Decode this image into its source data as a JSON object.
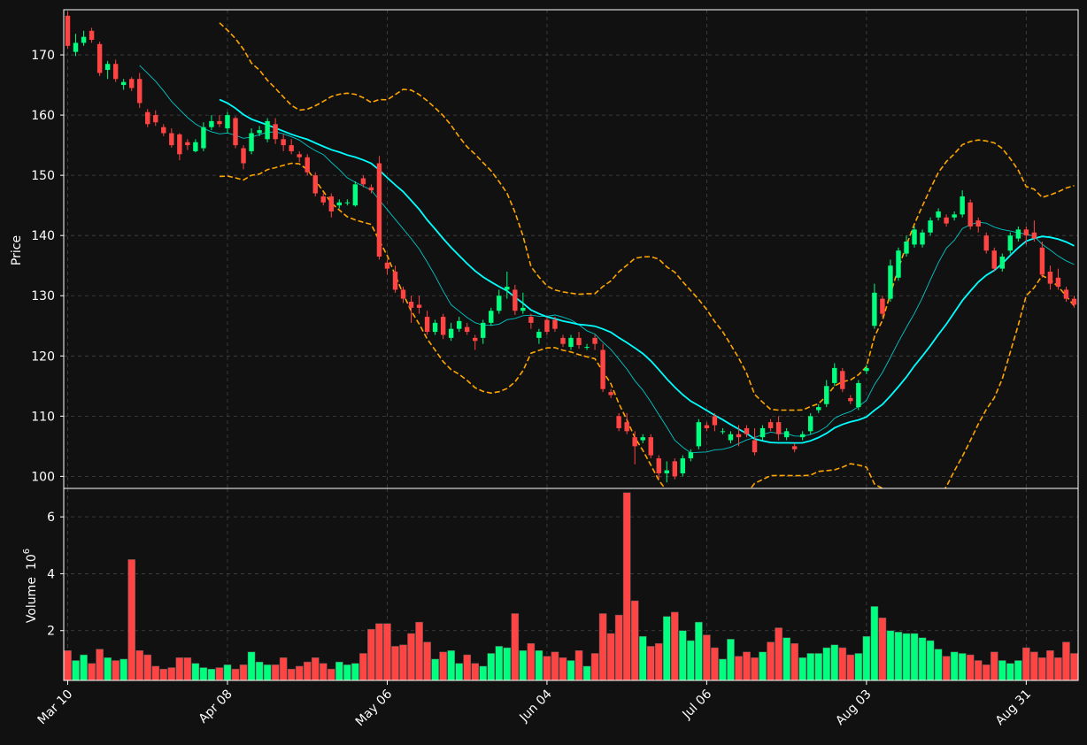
{
  "chart_data": {
    "type": "candlestick",
    "up_color": "#00ff7f",
    "down_color": "#ff4444",
    "ma_fast_color": "#00e5e5",
    "ma_slow_color": "#00ffff",
    "band_color": "#ffa500",
    "background": "#111111",
    "grid": true,
    "price_panel": {
      "ylabel": "Price",
      "yticks": [
        100,
        110,
        120,
        130,
        140,
        150,
        160,
        170
      ],
      "ylim": [
        98,
        177.5
      ]
    },
    "volume_panel": {
      "ylabel": "Volume",
      "scale_label": "10",
      "scale_exponent": "6",
      "yticks": [
        2,
        4,
        6
      ],
      "ylim": [
        0.25,
        7.0
      ]
    },
    "x_ticks": [
      {
        "label": "Mar 10",
        "index": 0
      },
      {
        "label": "Apr 08",
        "index": 20
      },
      {
        "label": "May 06",
        "index": 40
      },
      {
        "label": "Jun 04",
        "index": 60
      },
      {
        "label": "Jul 06",
        "index": 80
      },
      {
        "label": "Aug 03",
        "index": 100
      },
      {
        "label": "Aug 31",
        "index": 120
      }
    ],
    "candles": [
      [
        176.5,
        171.5,
        177.2,
        171.0
      ],
      [
        170.5,
        172.0,
        173.5,
        169.8
      ],
      [
        172.0,
        173.0,
        174.0,
        171.5
      ],
      [
        174.0,
        172.5,
        174.5,
        172.0
      ],
      [
        171.8,
        167.0,
        172.2,
        166.5
      ],
      [
        167.5,
        168.5,
        169.0,
        166.0
      ],
      [
        168.5,
        166.0,
        169.2,
        165.5
      ],
      [
        165.0,
        165.5,
        166.0,
        164.2
      ],
      [
        166.0,
        164.5,
        166.3,
        164.0
      ],
      [
        166.0,
        162.0,
        167.0,
        161.2
      ],
      [
        160.5,
        158.5,
        161.0,
        158.0
      ],
      [
        160.0,
        158.8,
        160.8,
        158.2
      ],
      [
        158.0,
        157.0,
        158.5,
        156.5
      ],
      [
        157.0,
        155.0,
        157.8,
        154.6
      ],
      [
        156.8,
        153.5,
        157.0,
        152.5
      ],
      [
        155.5,
        155.0,
        156.0,
        154.2
      ],
      [
        154.0,
        155.5,
        156.0,
        153.8
      ],
      [
        154.5,
        158.0,
        158.8,
        154.0
      ],
      [
        158.0,
        159.0,
        160.0,
        157.5
      ],
      [
        159.0,
        158.5,
        160.0,
        158.0
      ],
      [
        157.8,
        160.0,
        160.5,
        157.0
      ],
      [
        159.5,
        155.0,
        159.8,
        154.5
      ],
      [
        154.5,
        152.0,
        155.0,
        151.0
      ],
      [
        154.0,
        157.0,
        157.8,
        153.5
      ],
      [
        157.0,
        157.5,
        158.2,
        156.5
      ],
      [
        156.0,
        159.0,
        159.5,
        155.5
      ],
      [
        158.5,
        156.0,
        159.5,
        155.2
      ],
      [
        156.0,
        155.0,
        156.8,
        154.0
      ],
      [
        155.0,
        154.0,
        156.0,
        153.5
      ],
      [
        153.5,
        153.0,
        154.0,
        152.2
      ],
      [
        153.0,
        150.5,
        153.5,
        150.0
      ],
      [
        150.0,
        147.0,
        150.5,
        146.5
      ],
      [
        146.5,
        145.5,
        147.0,
        145.0
      ],
      [
        146.5,
        144.0,
        147.0,
        143.0
      ],
      [
        145.0,
        145.5,
        146.0,
        144.5
      ],
      [
        145.5,
        145.5,
        146.0,
        145.0
      ],
      [
        145.0,
        148.5,
        149.0,
        144.8
      ],
      [
        149.5,
        148.5,
        150.0,
        148.0
      ],
      [
        148.0,
        147.5,
        148.5,
        147.0
      ],
      [
        152.0,
        136.5,
        153.2,
        136.0
      ],
      [
        135.5,
        134.5,
        136.0,
        133.5
      ],
      [
        134.0,
        131.0,
        135.0,
        130.5
      ],
      [
        131.0,
        129.5,
        131.5,
        128.8
      ],
      [
        129.0,
        128.0,
        130.0,
        125.5
      ],
      [
        128.5,
        128.0,
        130.0,
        127.0
      ],
      [
        126.5,
        124.0,
        127.5,
        123.5
      ],
      [
        124.0,
        125.5,
        126.0,
        123.5
      ],
      [
        126.5,
        123.5,
        127.0,
        122.8
      ],
      [
        123.0,
        124.5,
        125.5,
        122.5
      ],
      [
        124.5,
        125.8,
        126.5,
        124.0
      ],
      [
        124.8,
        124.0,
        125.5,
        123.5
      ],
      [
        123.0,
        122.5,
        123.5,
        121.0
      ],
      [
        123.0,
        125.5,
        126.0,
        122.0
      ],
      [
        125.5,
        127.5,
        128.0,
        125.0
      ],
      [
        127.5,
        130.0,
        131.0,
        127.0
      ],
      [
        131.0,
        131.5,
        134.0,
        129.5
      ],
      [
        131.0,
        127.5,
        131.8,
        126.8
      ],
      [
        127.5,
        128.0,
        130.5,
        127.0
      ],
      [
        126.5,
        125.5,
        127.0,
        124.5
      ],
      [
        123.0,
        124.0,
        124.5,
        122.0
      ],
      [
        126.0,
        124.0,
        126.5,
        123.5
      ],
      [
        126.0,
        124.5,
        126.5,
        124.0
      ],
      [
        123.0,
        122.0,
        123.5,
        121.5
      ],
      [
        121.5,
        123.0,
        123.5,
        121.0
      ],
      [
        123.0,
        121.8,
        124.0,
        121.2
      ],
      [
        121.5,
        121.5,
        122.0,
        121.0
      ],
      [
        123.0,
        122.0,
        123.5,
        121.0
      ],
      [
        121.0,
        114.5,
        122.0,
        114.0
      ],
      [
        114.0,
        113.5,
        114.5,
        113.0
      ],
      [
        110.0,
        108.0,
        110.5,
        107.5
      ],
      [
        109.0,
        107.5,
        110.5,
        107.0
      ],
      [
        106.5,
        105.0,
        107.5,
        102.0
      ],
      [
        106.0,
        106.5,
        107.0,
        105.5
      ],
      [
        106.5,
        103.5,
        107.0,
        103.0
      ],
      [
        103.0,
        100.5,
        103.5,
        99.5
      ],
      [
        100.5,
        101.0,
        102.5,
        99.0
      ],
      [
        102.5,
        100.0,
        103.0,
        99.5
      ],
      [
        100.5,
        103.0,
        103.5,
        100.0
      ],
      [
        103.0,
        104.0,
        104.5,
        102.5
      ],
      [
        105.0,
        109.0,
        109.5,
        104.5
      ],
      [
        108.5,
        108.0,
        109.0,
        107.5
      ],
      [
        110.0,
        108.5,
        110.5,
        107.5
      ],
      [
        107.5,
        107.5,
        108.0,
        107.0
      ],
      [
        106.0,
        107.0,
        107.5,
        105.5
      ],
      [
        107.0,
        106.5,
        108.5,
        105.0
      ],
      [
        108.0,
        107.0,
        108.5,
        106.5
      ],
      [
        106.0,
        104.0,
        108.0,
        103.5
      ],
      [
        106.5,
        108.0,
        108.5,
        106.0
      ],
      [
        109.0,
        108.0,
        109.5,
        107.5
      ],
      [
        109.0,
        107.0,
        110.0,
        106.0
      ],
      [
        106.5,
        107.5,
        108.0,
        106.0
      ],
      [
        105.0,
        104.5,
        105.5,
        104.0
      ],
      [
        106.5,
        107.0,
        107.5,
        106.0
      ],
      [
        107.5,
        110.0,
        110.5,
        107.0
      ],
      [
        111.0,
        111.5,
        112.0,
        110.5
      ],
      [
        112.0,
        115.0,
        116.0,
        111.5
      ],
      [
        115.5,
        118.0,
        118.8,
        115.0
      ],
      [
        117.5,
        114.5,
        118.0,
        114.0
      ],
      [
        113.0,
        112.5,
        113.5,
        112.0
      ],
      [
        111.5,
        115.5,
        116.0,
        111.0
      ],
      [
        117.5,
        118.0,
        118.5,
        117.0
      ],
      [
        125.0,
        130.5,
        132.0,
        124.5
      ],
      [
        129.5,
        127.0,
        130.0,
        126.5
      ],
      [
        129.5,
        135.0,
        136.0,
        129.0
      ],
      [
        133.0,
        137.5,
        138.0,
        132.5
      ],
      [
        137.0,
        139.0,
        140.0,
        136.5
      ],
      [
        138.5,
        141.0,
        141.5,
        138.0
      ],
      [
        138.5,
        140.5,
        141.0,
        138.0
      ],
      [
        140.5,
        142.5,
        143.0,
        140.0
      ],
      [
        143.0,
        144.0,
        144.5,
        142.5
      ],
      [
        143.0,
        142.0,
        143.5,
        141.5
      ],
      [
        143.0,
        143.5,
        144.0,
        142.5
      ],
      [
        143.5,
        146.5,
        147.5,
        143.0
      ],
      [
        145.5,
        141.5,
        146.0,
        141.0
      ],
      [
        142.5,
        141.5,
        143.0,
        140.5
      ],
      [
        140.0,
        137.5,
        140.5,
        137.0
      ],
      [
        137.5,
        134.5,
        138.0,
        134.0
      ],
      [
        134.5,
        136.5,
        137.0,
        134.0
      ],
      [
        137.5,
        140.0,
        140.5,
        137.0
      ],
      [
        139.5,
        141.0,
        141.5,
        139.0
      ],
      [
        141.0,
        140.0,
        141.5,
        138.5
      ],
      [
        140.5,
        139.5,
        142.5,
        139.0
      ],
      [
        138.0,
        133.5,
        139.0,
        133.0
      ],
      [
        134.0,
        132.0,
        135.0,
        131.0
      ],
      [
        133.0,
        131.5,
        134.5,
        131.0
      ],
      [
        131.0,
        129.5,
        131.5,
        129.0
      ],
      [
        129.5,
        128.5,
        130.0,
        128.0
      ]
    ],
    "volumes": [
      1.3,
      0.95,
      1.15,
      0.85,
      1.35,
      1.05,
      0.95,
      1.0,
      4.5,
      1.3,
      1.15,
      0.75,
      0.65,
      0.7,
      1.05,
      1.05,
      0.85,
      0.7,
      0.65,
      0.7,
      0.8,
      0.65,
      0.8,
      1.25,
      0.9,
      0.8,
      0.8,
      1.05,
      0.65,
      0.75,
      0.9,
      1.05,
      0.85,
      0.65,
      0.9,
      0.8,
      0.85,
      1.2,
      2.05,
      2.25,
      2.25,
      1.45,
      1.5,
      1.9,
      2.3,
      1.6,
      1.0,
      1.25,
      1.3,
      0.85,
      1.15,
      0.85,
      0.75,
      1.2,
      1.45,
      1.4,
      2.6,
      1.3,
      1.55,
      1.3,
      1.1,
      1.25,
      1.05,
      0.95,
      1.3,
      0.75,
      1.2,
      2.6,
      1.9,
      2.55,
      6.85,
      3.05,
      1.8,
      1.45,
      1.55,
      2.5,
      2.65,
      2.0,
      1.65,
      2.3,
      1.85,
      1.4,
      1.0,
      1.7,
      1.1,
      1.25,
      1.05,
      1.25,
      1.6,
      2.1,
      1.75,
      1.55,
      1.05,
      1.2,
      1.2,
      1.4,
      1.5,
      1.4,
      1.15,
      1.2,
      1.8,
      2.85,
      2.45,
      2.0,
      1.95,
      1.9,
      1.9,
      1.75,
      1.65,
      1.35,
      1.1,
      1.25,
      1.2,
      1.15,
      0.95,
      0.8,
      1.25,
      0.95,
      0.85,
      0.95,
      1.4,
      1.25,
      1.05,
      1.3,
      1.05,
      1.6,
      1.2
    ]
  }
}
